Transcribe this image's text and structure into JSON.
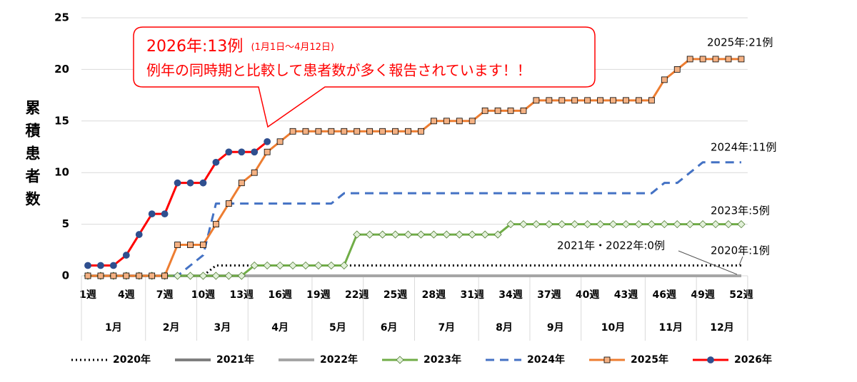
{
  "chart_data": {
    "type": "line",
    "y_label": "累積患者数",
    "categories": [
      "1週",
      null,
      null,
      "4週",
      null,
      null,
      "7週",
      null,
      null,
      "10週",
      null,
      null,
      "13週",
      null,
      null,
      "16週",
      null,
      null,
      "19週",
      null,
      null,
      "22週",
      null,
      null,
      "25週",
      null,
      null,
      "28週",
      null,
      null,
      "31週",
      null,
      null,
      "34週",
      null,
      null,
      "37週",
      null,
      null,
      "40週",
      null,
      null,
      "43週",
      null,
      null,
      "46週",
      null,
      null,
      "49週",
      null,
      null,
      "52週"
    ],
    "months": [
      {
        "label": "1月",
        "weeks": 5
      },
      {
        "label": "2月",
        "weeks": 4
      },
      {
        "label": "3月",
        "weeks": 4
      },
      {
        "label": "4月",
        "weeks": 5
      },
      {
        "label": "5月",
        "weeks": 4
      },
      {
        "label": "6月",
        "weeks": 4
      },
      {
        "label": "7月",
        "weeks": 5
      },
      {
        "label": "8月",
        "weeks": 4
      },
      {
        "label": "9月",
        "weeks": 4
      },
      {
        "label": "10月",
        "weeks": 5
      },
      {
        "label": "11月",
        "weeks": 4
      },
      {
        "label": "12月",
        "weeks": 4
      }
    ],
    "ylim": [
      0,
      25
    ],
    "yticks": [
      0,
      5,
      10,
      15,
      20,
      25
    ],
    "grid": true,
    "legend": "bottom",
    "series": [
      {
        "name": "2020年",
        "color": "#000000",
        "style": "dotted",
        "marker": null,
        "values": [
          0,
          0,
          0,
          0,
          0,
          0,
          0,
          0,
          0,
          0,
          1,
          1,
          1,
          1,
          1,
          1,
          1,
          1,
          1,
          1,
          1,
          1,
          1,
          1,
          1,
          1,
          1,
          1,
          1,
          1,
          1,
          1,
          1,
          1,
          1,
          1,
          1,
          1,
          1,
          1,
          1,
          1,
          1,
          1,
          1,
          1,
          1,
          1,
          1,
          1,
          1,
          1
        ]
      },
      {
        "name": "2021年",
        "color": "#7f7f7f",
        "style": "solid",
        "marker": null,
        "values": [
          0,
          0,
          0,
          0,
          0,
          0,
          0,
          0,
          0,
          0,
          0,
          0,
          0,
          0,
          0,
          0,
          0,
          0,
          0,
          0,
          0,
          0,
          0,
          0,
          0,
          0,
          0,
          0,
          0,
          0,
          0,
          0,
          0,
          0,
          0,
          0,
          0,
          0,
          0,
          0,
          0,
          0,
          0,
          0,
          0,
          0,
          0,
          0,
          0,
          0,
          0,
          0
        ]
      },
      {
        "name": "2022年",
        "color": "#a5a5a5",
        "style": "solid",
        "marker": null,
        "values": [
          0,
          0,
          0,
          0,
          0,
          0,
          0,
          0,
          0,
          0,
          0,
          0,
          0,
          0,
          0,
          0,
          0,
          0,
          0,
          0,
          0,
          0,
          0,
          0,
          0,
          0,
          0,
          0,
          0,
          0,
          0,
          0,
          0,
          0,
          0,
          0,
          0,
          0,
          0,
          0,
          0,
          0,
          0,
          0,
          0,
          0,
          0,
          0,
          0,
          0,
          0,
          0
        ]
      },
      {
        "name": "2023年",
        "color": "#70ad47",
        "style": "solid",
        "marker": "diamond",
        "marker_color": "#e2f0d9",
        "values": [
          0,
          0,
          0,
          0,
          0,
          0,
          0,
          0,
          0,
          0,
          0,
          0,
          0,
          1,
          1,
          1,
          1,
          1,
          1,
          1,
          1,
          4,
          4,
          4,
          4,
          4,
          4,
          4,
          4,
          4,
          4,
          4,
          4,
          5,
          5,
          5,
          5,
          5,
          5,
          5,
          5,
          5,
          5,
          5,
          5,
          5,
          5,
          5,
          5,
          5,
          5,
          5
        ]
      },
      {
        "name": "2024年",
        "color": "#4472c4",
        "style": "dashed",
        "marker": null,
        "values": [
          0,
          0,
          0,
          0,
          0,
          0,
          0,
          0,
          1,
          2,
          7,
          7,
          7,
          7,
          7,
          7,
          7,
          7,
          7,
          7,
          8,
          8,
          8,
          8,
          8,
          8,
          8,
          8,
          8,
          8,
          8,
          8,
          8,
          8,
          8,
          8,
          8,
          8,
          8,
          8,
          8,
          8,
          8,
          8,
          8,
          9,
          9,
          10,
          11,
          11,
          11,
          11
        ]
      },
      {
        "name": "2025年",
        "color": "#ed7d31",
        "style": "solid",
        "marker": "square",
        "marker_color": "#f4b183",
        "values": [
          0,
          0,
          0,
          0,
          0,
          0,
          0,
          3,
          3,
          3,
          5,
          7,
          9,
          10,
          12,
          13,
          14,
          14,
          14,
          14,
          14,
          14,
          14,
          14,
          14,
          14,
          14,
          15,
          15,
          15,
          15,
          16,
          16,
          16,
          16,
          17,
          17,
          17,
          17,
          17,
          17,
          17,
          17,
          17,
          17,
          19,
          20,
          21,
          21,
          21,
          21,
          21
        ]
      },
      {
        "name": "2026年",
        "color": "#ff0000",
        "style": "solid",
        "marker": "circle",
        "marker_color": "#2f4f8f",
        "values": [
          1,
          1,
          1,
          2,
          4,
          6,
          6,
          9,
          9,
          9,
          11,
          12,
          12,
          12,
          13,
          null,
          null,
          null,
          null,
          null,
          null,
          null,
          null,
          null,
          null,
          null,
          null,
          null,
          null,
          null,
          null,
          null,
          null,
          null,
          null,
          null,
          null,
          null,
          null,
          null,
          null,
          null,
          null,
          null,
          null,
          null,
          null,
          null,
          null,
          null,
          null,
          null
        ]
      }
    ],
    "end_labels": [
      "2025年:21例",
      "2024年:11例",
      "2023年:5例",
      "2021年・2022年:0例",
      "2020年:1例"
    ],
    "callout": {
      "title": "2026年:13例",
      "note": "(1月1日～4月12日)",
      "message": "例年の同時期と比較して患者数が多く報告されています！！"
    }
  }
}
